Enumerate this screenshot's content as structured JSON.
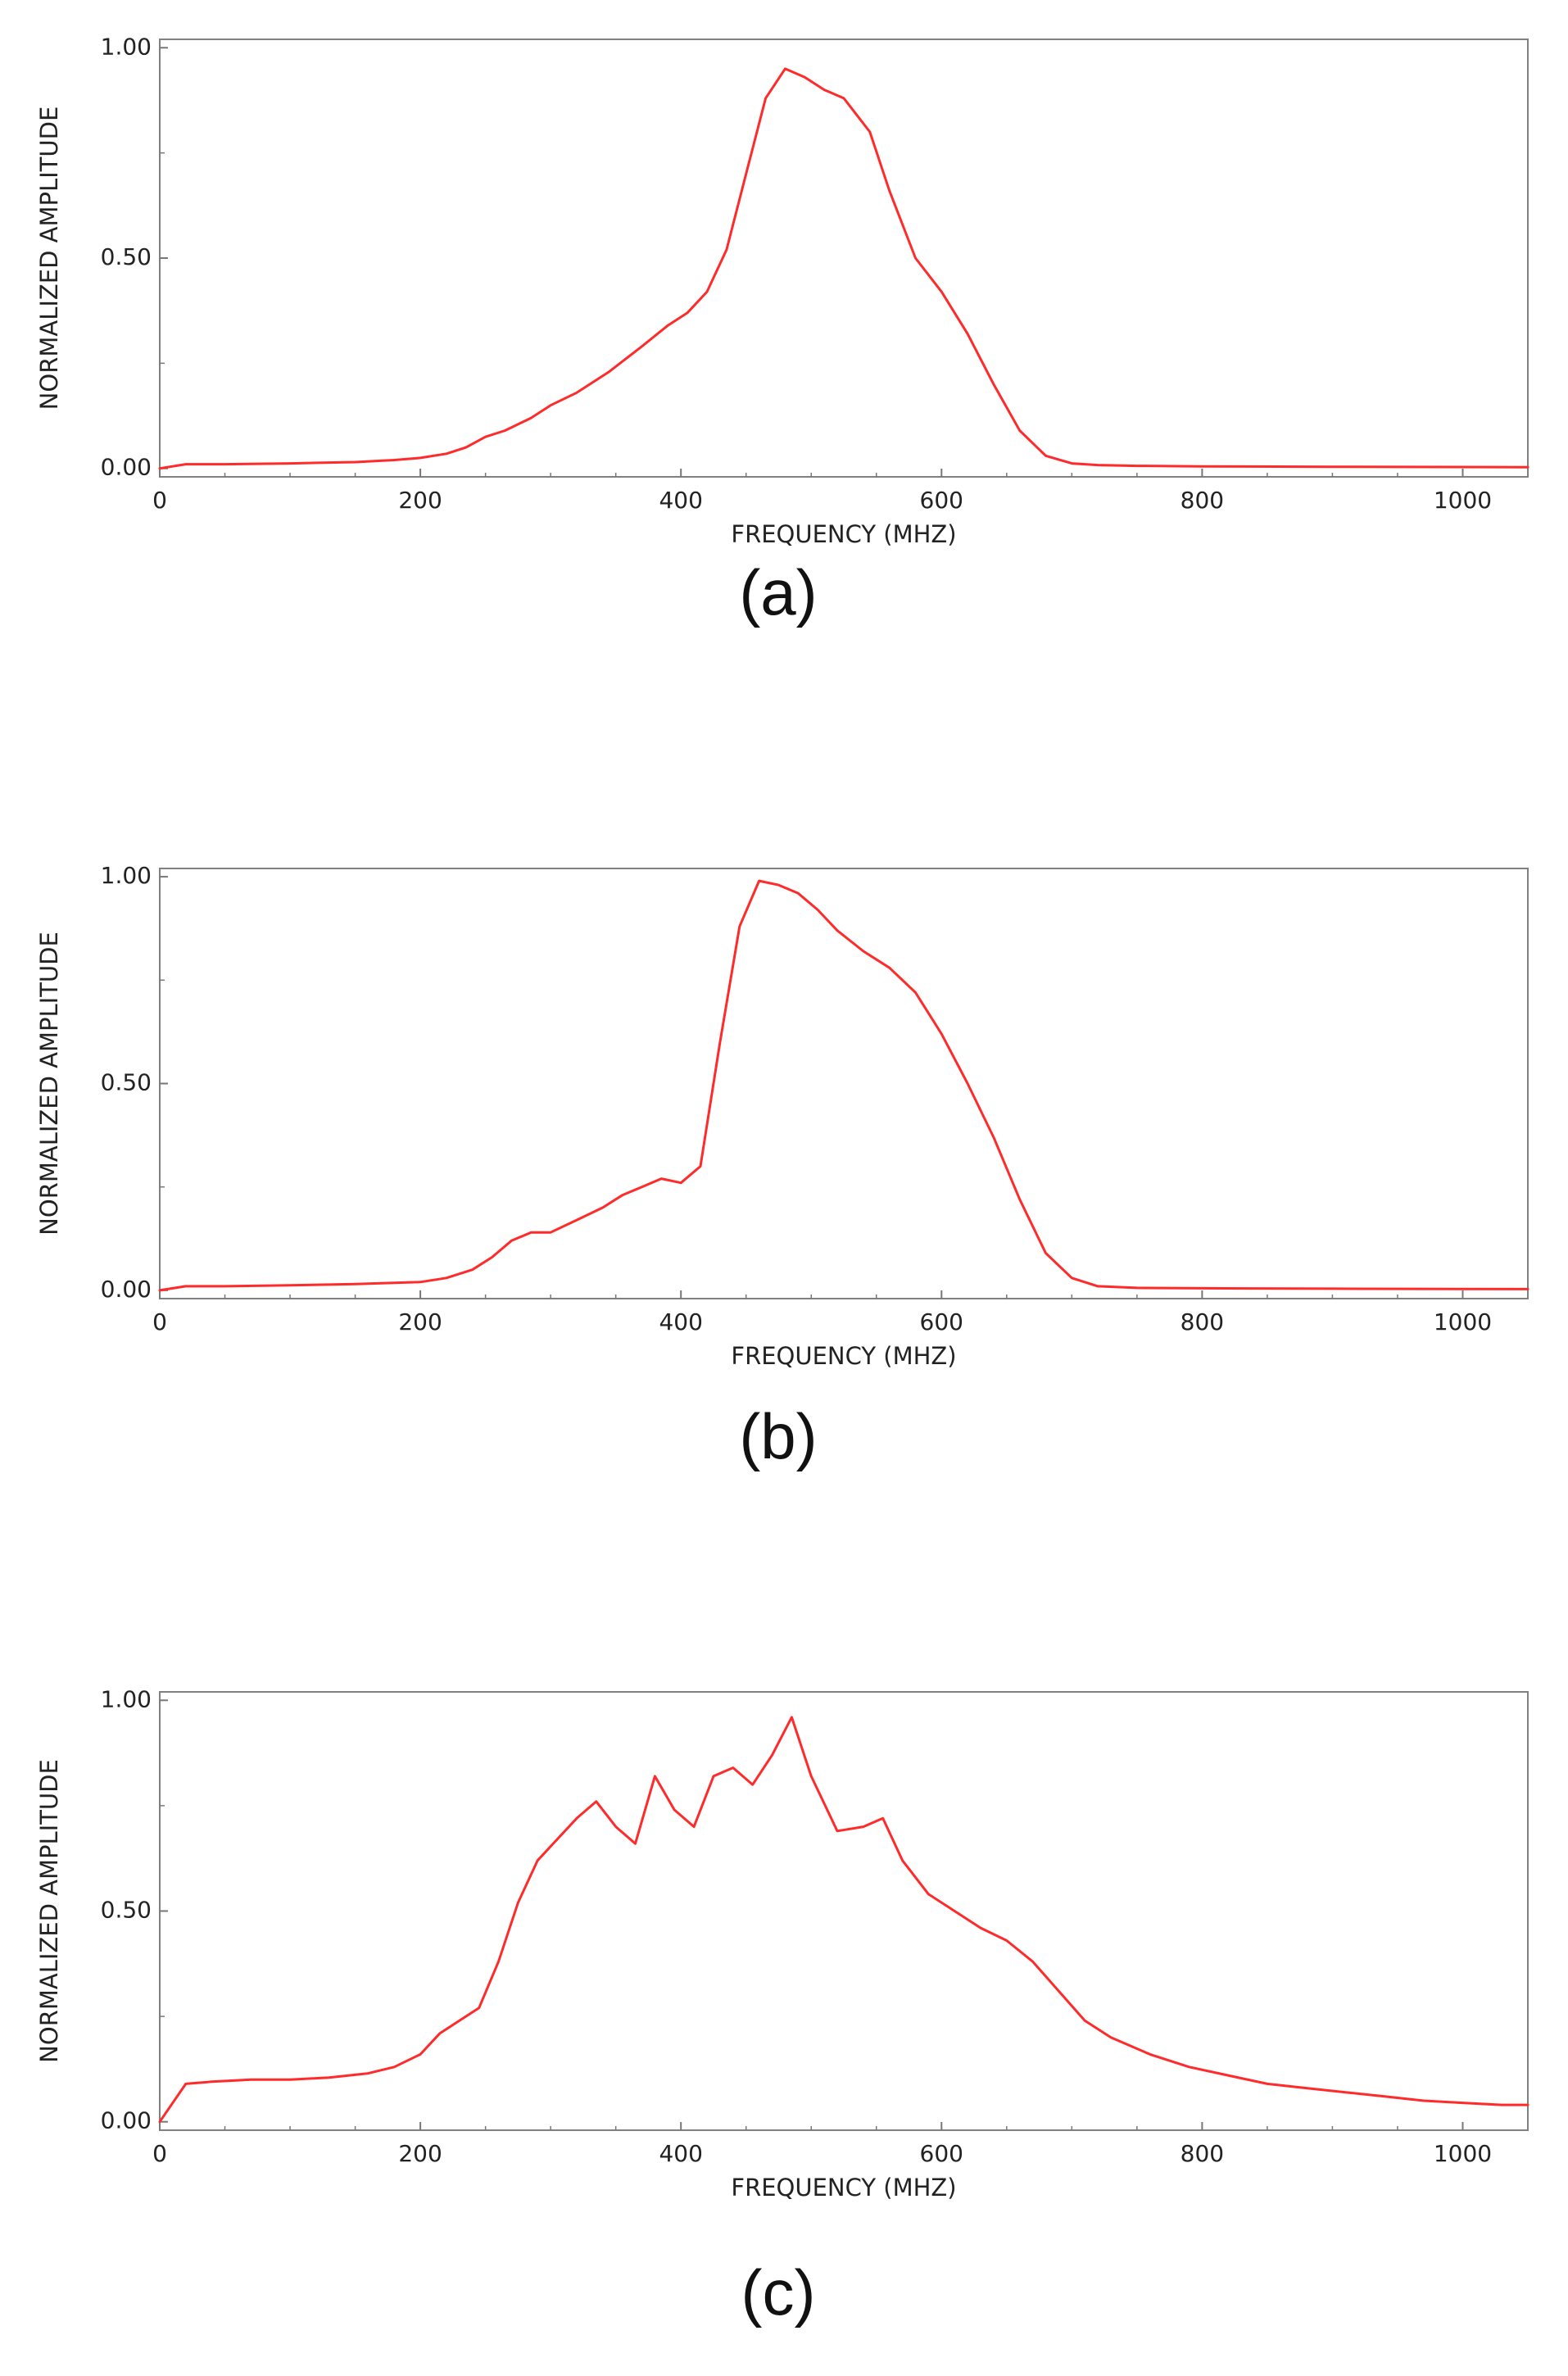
{
  "colors": {
    "series": "#ff2a2a",
    "frame": "#808080",
    "tick": "#777777"
  },
  "chart_data": [
    {
      "type": "line",
      "caption": "(a)",
      "xlabel": "FREQUENCY (MHZ)",
      "ylabel": "NORMALIZED AMPLITUDE",
      "xlim": [
        0,
        1050
      ],
      "ylim": [
        -0.02,
        1.02
      ],
      "xticks": [
        "0",
        "200",
        "400",
        "600",
        "800",
        "1000"
      ],
      "yticks": [
        "0.00",
        "0.50",
        "1.00"
      ],
      "grid": false,
      "legend": "none",
      "series": [
        {
          "x": [
            0,
            20,
            50,
            100,
            150,
            180,
            200,
            220,
            235,
            250,
            265,
            285,
            300,
            320,
            345,
            370,
            390,
            405,
            420,
            435,
            450,
            465,
            480,
            495,
            510,
            525,
            545,
            560,
            580,
            600,
            620,
            640,
            660,
            680,
            700,
            720,
            750,
            800,
            900,
            1050
          ],
          "y": [
            0.0,
            0.01,
            0.01,
            0.012,
            0.015,
            0.02,
            0.025,
            0.035,
            0.05,
            0.075,
            0.09,
            0.12,
            0.15,
            0.18,
            0.23,
            0.29,
            0.34,
            0.37,
            0.42,
            0.52,
            0.7,
            0.88,
            0.95,
            0.93,
            0.9,
            0.88,
            0.8,
            0.66,
            0.5,
            0.42,
            0.32,
            0.2,
            0.09,
            0.03,
            0.012,
            0.008,
            0.006,
            0.005,
            0.004,
            0.003
          ]
        }
      ]
    },
    {
      "type": "line",
      "caption": "(b)",
      "xlabel": "FREQUENCY (MHZ)",
      "ylabel": "NORMALIZED AMPLITUDE",
      "xlim": [
        0,
        1050
      ],
      "ylim": [
        -0.02,
        1.02
      ],
      "xticks": [
        "0",
        "200",
        "400",
        "600",
        "800",
        "1000"
      ],
      "yticks": [
        "0.00",
        "0.50",
        "1.00"
      ],
      "grid": false,
      "legend": "none",
      "series": [
        {
          "x": [
            0,
            20,
            50,
            100,
            150,
            200,
            220,
            240,
            255,
            270,
            285,
            300,
            320,
            340,
            355,
            370,
            385,
            400,
            415,
            430,
            445,
            460,
            475,
            490,
            505,
            520,
            540,
            560,
            580,
            600,
            620,
            640,
            660,
            680,
            700,
            720,
            750,
            800,
            900,
            1050
          ],
          "y": [
            0.0,
            0.01,
            0.01,
            0.012,
            0.015,
            0.02,
            0.03,
            0.05,
            0.08,
            0.12,
            0.14,
            0.14,
            0.17,
            0.2,
            0.23,
            0.25,
            0.27,
            0.26,
            0.3,
            0.6,
            0.88,
            0.99,
            0.98,
            0.96,
            0.92,
            0.87,
            0.82,
            0.78,
            0.72,
            0.62,
            0.5,
            0.37,
            0.22,
            0.09,
            0.03,
            0.01,
            0.006,
            0.005,
            0.004,
            0.003
          ]
        }
      ]
    },
    {
      "type": "line",
      "caption": "(c)",
      "xlabel": "FREQUENCY (MHZ)",
      "ylabel": "NORMALIZED AMPLITUDE",
      "xlim": [
        0,
        1050
      ],
      "ylim": [
        -0.02,
        1.02
      ],
      "xticks": [
        "0",
        "200",
        "400",
        "600",
        "800",
        "1000"
      ],
      "yticks": [
        "0.00",
        "0.50",
        "1.00"
      ],
      "grid": false,
      "legend": "none",
      "series": [
        {
          "x": [
            0,
            20,
            40,
            70,
            100,
            130,
            160,
            180,
            200,
            215,
            230,
            245,
            260,
            275,
            290,
            305,
            320,
            335,
            350,
            365,
            380,
            395,
            410,
            425,
            440,
            455,
            470,
            485,
            500,
            520,
            540,
            555,
            570,
            590,
            610,
            630,
            650,
            670,
            690,
            710,
            730,
            760,
            790,
            820,
            850,
            880,
            910,
            940,
            970,
            1000,
            1030,
            1050
          ],
          "y": [
            0.0,
            0.09,
            0.095,
            0.1,
            0.1,
            0.105,
            0.115,
            0.13,
            0.16,
            0.21,
            0.24,
            0.27,
            0.38,
            0.52,
            0.62,
            0.67,
            0.72,
            0.76,
            0.7,
            0.66,
            0.82,
            0.74,
            0.7,
            0.82,
            0.84,
            0.8,
            0.87,
            0.96,
            0.82,
            0.69,
            0.7,
            0.72,
            0.62,
            0.54,
            0.5,
            0.46,
            0.43,
            0.38,
            0.31,
            0.24,
            0.2,
            0.16,
            0.13,
            0.11,
            0.09,
            0.08,
            0.07,
            0.06,
            0.05,
            0.045,
            0.04,
            0.04
          ]
        }
      ]
    }
  ]
}
